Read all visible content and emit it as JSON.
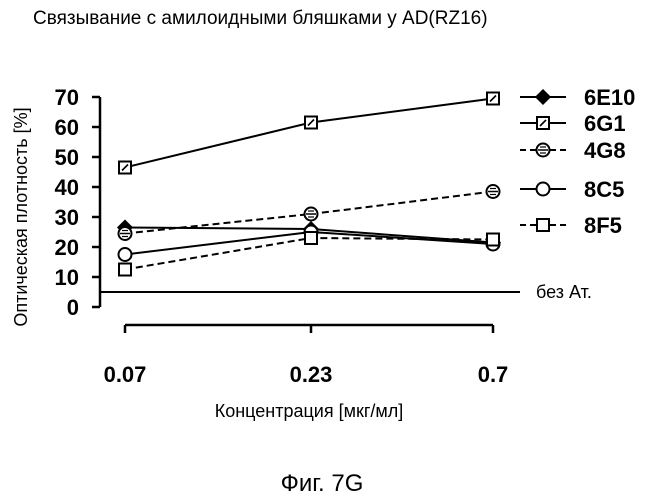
{
  "chart_data": {
    "type": "line",
    "title": "Связывание с амилоидными бляшками у AD(RZ16)",
    "xlabel": "Концентрация [мкг/мл]",
    "ylabel": "Оптическая плотность [%]",
    "categories": [
      "0.07",
      "0.23",
      "0.7"
    ],
    "ylim": [
      0,
      70
    ],
    "yticks": [
      0,
      10,
      20,
      30,
      40,
      50,
      60,
      70
    ],
    "grid": false,
    "legend_position": "right",
    "series": [
      {
        "name": "6E10",
        "values": [
          26.5,
          26,
          21.5
        ],
        "marker": "diamond-filled",
        "dashed": false
      },
      {
        "name": "6G1",
        "values": [
          46.5,
          61.5,
          69.5
        ],
        "marker": "square-dot",
        "dashed": false
      },
      {
        "name": "4G8",
        "values": [
          24.5,
          31,
          38.5
        ],
        "marker": "circle-hatched",
        "dashed": true
      },
      {
        "name": "8C5",
        "values": [
          17.5,
          25,
          21
        ],
        "marker": "circle-open",
        "dashed": false
      },
      {
        "name": "8F5",
        "values": [
          12.5,
          23,
          22.5
        ],
        "marker": "square-open",
        "dashed": true
      }
    ],
    "baseline": {
      "value": 5,
      "label": "без Ат."
    }
  },
  "caption": "Фиг. 7G",
  "colors": {
    "ink": "#000000",
    "background": "#ffffff"
  }
}
